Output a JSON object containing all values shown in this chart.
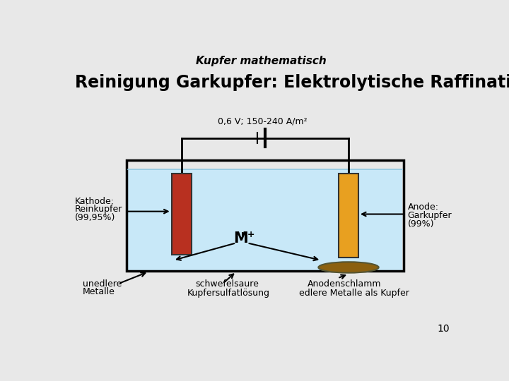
{
  "title": "Kupfer mathematisch",
  "subtitle": "Reinigung Garkupfer: Elektrolytische Raffination",
  "voltage_label": "0,6 V; 150-240 A/m²",
  "bg_color": "#e8e8e8",
  "tank_fill_color": "#c8e8f8",
  "tank_border_color": "#000000",
  "cathode_color": "#b83020",
  "anode_color": "#e8a020",
  "sludge_color": "#8B6010",
  "page_number": "10",
  "labels": {
    "kathode_line1": "Kathode:",
    "kathode_line2": "Reinkupfer",
    "kathode_line3": "(99,95%)",
    "anode_line1": "Anode:",
    "anode_line2": "Garkupfer",
    "anode_line3": "(99%)",
    "ion_label": "M",
    "ion_superscript": "n+",
    "unedlere_line1": "unedlere",
    "unedlere_line2": "Metalle",
    "schwefelsaure": "schwefelsaure",
    "kupfersulfat": "Kupfersulfatlösung",
    "anodenschlamm": "Anodenschlamm",
    "edlere": "edlere Metalle als Kupfer"
  }
}
